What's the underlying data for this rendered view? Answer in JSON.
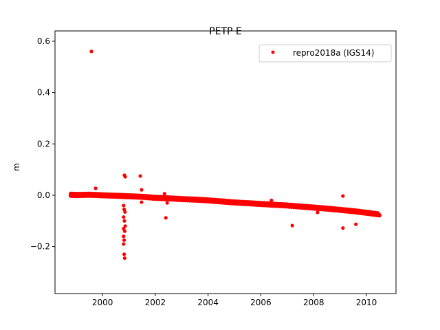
{
  "chart_data": {
    "type": "scatter",
    "title": "PETP E",
    "xlabel": "",
    "ylabel": "m",
    "xlim": [
      1998.2,
      2011.12
    ],
    "ylim": [
      -0.383,
      0.64
    ],
    "xticks": [
      2000,
      2002,
      2004,
      2006,
      2008,
      2010
    ],
    "xtick_labels": [
      "2000",
      "2002",
      "2004",
      "2006",
      "2008",
      "2010"
    ],
    "yticks": [
      -0.2,
      0.0,
      0.2,
      0.4,
      0.6
    ],
    "ytick_labels": [
      "−0.2",
      "0.0",
      "0.2",
      "0.4",
      "0.6"
    ],
    "grid": false,
    "legend_position": "top-right",
    "series": [
      {
        "name": "repro2018a (IGS14)",
        "color": "#ff0000",
        "marker": "dot",
        "trend_points": {
          "x": [
            1998.8,
            1999.0,
            1999.5,
            2000.0,
            2000.5,
            2001.0,
            2001.5,
            2002.0,
            2002.5,
            2003.0,
            2003.5,
            2004.0,
            2004.5,
            2005.0,
            2005.5,
            2006.0,
            2006.5,
            2007.0,
            2007.5,
            2008.0,
            2008.5,
            2009.0,
            2009.5,
            2010.0,
            2010.5
          ],
          "y": [
            0.002,
            0.001,
            0.002,
            0.0,
            -0.002,
            -0.004,
            -0.006,
            -0.01,
            -0.012,
            -0.015,
            -0.017,
            -0.02,
            -0.024,
            -0.028,
            -0.031,
            -0.034,
            -0.037,
            -0.04,
            -0.044,
            -0.048,
            -0.052,
            -0.057,
            -0.062,
            -0.068,
            -0.075
          ]
        },
        "outliers": {
          "x": [
            1999.58,
            1999.74,
            2000.83,
            2000.86,
            2001.43,
            2001.48,
            2001.48,
            2002.35,
            2002.4,
            2002.45,
            2000.8,
            2000.82,
            2000.85,
            2000.8,
            2000.83,
            2000.86,
            2000.8,
            2000.84,
            2000.8,
            2000.82,
            2000.8,
            2000.82,
            2000.84,
            2006.4,
            2007.19,
            2008.15,
            2009.11,
            2009.11,
            2009.6
          ],
          "y": [
            0.56,
            0.027,
            0.078,
            0.072,
            0.075,
            0.021,
            -0.027,
            0.006,
            -0.088,
            -0.03,
            -0.04,
            -0.055,
            -0.065,
            -0.085,
            -0.1,
            -0.12,
            -0.13,
            -0.14,
            -0.16,
            -0.175,
            -0.19,
            -0.23,
            -0.245,
            -0.02,
            -0.118,
            -0.067,
            -0.003,
            -0.128,
            -0.113
          ]
        }
      }
    ]
  }
}
